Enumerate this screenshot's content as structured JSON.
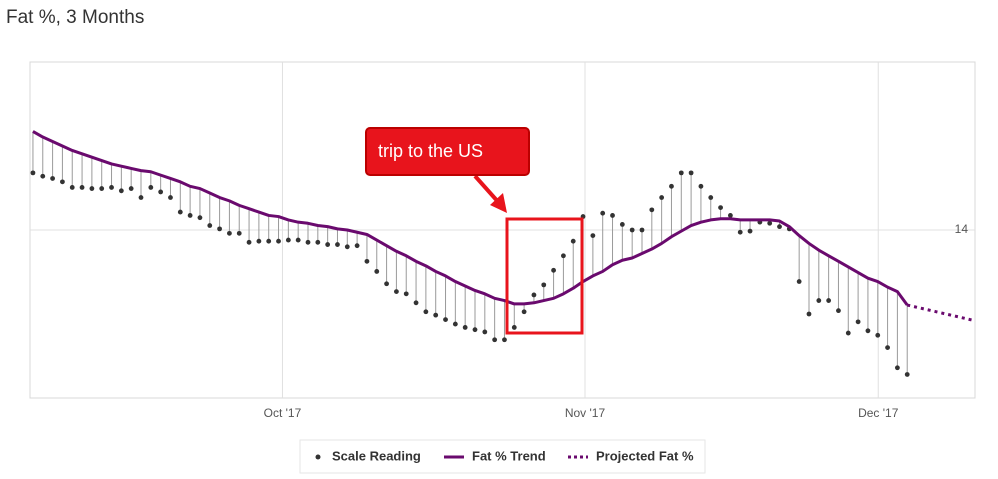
{
  "chart_data": {
    "type": "line",
    "title": "Fat %, 3 Months",
    "annotation": "trip to the US",
    "xlim": [
      -0.3,
      95.9
    ],
    "xticks": [
      {
        "value": 25.4,
        "label": "Oct '17"
      },
      {
        "value": 56.2,
        "label": "Nov '17"
      },
      {
        "value": 86.05,
        "label": "Dec '17"
      }
    ],
    "ylim": [
      12.5,
      15.5
    ],
    "yticks": [
      14
    ],
    "grid": true,
    "legend": "bottom",
    "x": [
      0,
      1,
      2,
      3,
      4,
      5,
      6,
      7,
      8,
      9,
      10,
      11,
      12,
      13,
      14,
      15,
      16,
      17,
      18,
      19,
      20,
      21,
      22,
      23,
      24,
      25,
      26,
      27,
      28,
      29,
      30,
      31,
      32,
      33,
      34,
      35,
      36,
      37,
      38,
      39,
      40,
      41,
      42,
      43,
      44,
      45,
      46,
      47,
      48,
      49,
      50,
      51,
      52,
      53,
      54,
      55,
      56,
      57,
      58,
      59,
      60,
      61,
      62,
      63,
      64,
      65,
      66,
      67,
      68,
      69,
      70,
      71,
      72,
      73,
      74,
      75,
      76,
      77,
      78,
      79,
      80,
      81,
      82,
      83,
      84,
      85,
      86,
      87,
      88,
      89
    ],
    "series": [
      {
        "name": "Scale Reading",
        "type": "scatter",
        "color": "#333333",
        "values": [
          14.51,
          14.48,
          14.46,
          14.43,
          14.38,
          14.38,
          14.37,
          14.37,
          14.38,
          14.35,
          14.37,
          14.29,
          14.38,
          14.34,
          14.29,
          14.16,
          14.13,
          14.11,
          14.04,
          14.01,
          13.97,
          13.97,
          13.89,
          13.9,
          13.9,
          13.9,
          13.91,
          13.91,
          13.89,
          13.89,
          13.87,
          13.87,
          13.85,
          13.86,
          13.72,
          13.63,
          13.52,
          13.45,
          13.43,
          13.35,
          13.27,
          13.24,
          13.2,
          13.16,
          13.13,
          13.11,
          13.09,
          13.02,
          13.02,
          13.13,
          13.27,
          13.42,
          13.51,
          13.64,
          13.77,
          13.9,
          14.12,
          13.95,
          14.15,
          14.13,
          14.05,
          14.0,
          14.0,
          14.18,
          14.29,
          14.39,
          14.51,
          14.51,
          14.39,
          14.29,
          14.2,
          14.13,
          13.98,
          13.99,
          14.07,
          14.06,
          14.03,
          14.01,
          13.54,
          13.25,
          13.37,
          13.37,
          13.28,
          13.08,
          13.18,
          13.1,
          13.06,
          12.95,
          12.77,
          12.71
        ]
      },
      {
        "name": "Fat % Trend",
        "type": "line",
        "color": "#6a0a6e",
        "values": [
          14.88,
          14.83,
          14.79,
          14.75,
          14.71,
          14.68,
          14.65,
          14.62,
          14.59,
          14.57,
          14.55,
          14.53,
          14.52,
          14.49,
          14.46,
          14.43,
          14.39,
          14.37,
          14.33,
          14.29,
          14.26,
          14.22,
          14.19,
          14.16,
          14.13,
          14.12,
          14.09,
          14.07,
          14.06,
          14.04,
          14.03,
          14.01,
          14.0,
          13.98,
          13.96,
          13.91,
          13.86,
          13.81,
          13.77,
          13.72,
          13.68,
          13.63,
          13.59,
          13.54,
          13.5,
          13.46,
          13.43,
          13.39,
          13.37,
          13.34,
          13.34,
          13.35,
          13.37,
          13.39,
          13.43,
          13.48,
          13.54,
          13.59,
          13.63,
          13.69,
          13.73,
          13.75,
          13.79,
          13.83,
          13.88,
          13.94,
          13.99,
          14.04,
          14.07,
          14.09,
          14.1,
          14.1,
          14.09,
          14.09,
          14.09,
          14.09,
          14.08,
          14.03,
          13.95,
          13.88,
          13.82,
          13.77,
          13.72,
          13.67,
          13.62,
          13.57,
          13.54,
          13.49,
          13.45,
          13.33
        ]
      },
      {
        "name": "Projected Fat %",
        "type": "line",
        "line_style": "dotted",
        "color": "#6a0a6e",
        "x": [
          89,
          95.9
        ],
        "values": [
          13.33,
          13.19
        ]
      }
    ]
  }
}
